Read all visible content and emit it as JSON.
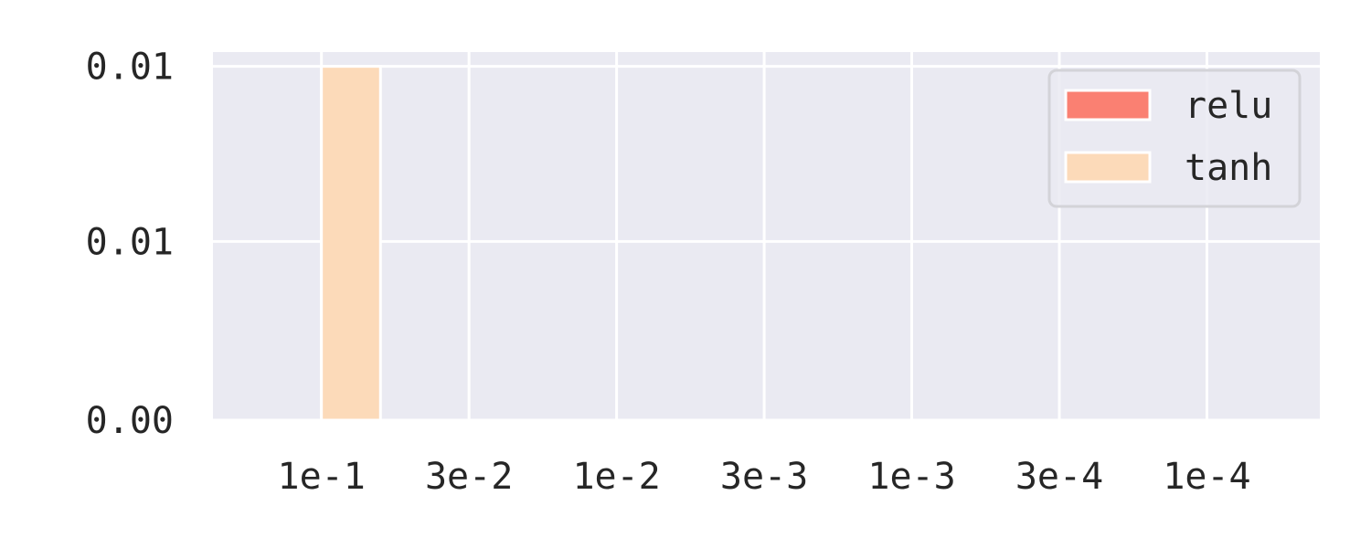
{
  "chart_data": {
    "type": "bar",
    "categories": [
      "1e-1",
      "3e-2",
      "1e-2",
      "3e-3",
      "1e-3",
      "3e-4",
      "1e-4"
    ],
    "series": [
      {
        "name": "relu",
        "color": "#fa8072",
        "values": [
          0,
          0,
          0,
          0,
          0,
          0,
          0
        ]
      },
      {
        "name": "tanh",
        "color": "#fcdab9",
        "values": [
          0.0099,
          0,
          0,
          0,
          0,
          0,
          0
        ]
      }
    ],
    "yticks": [
      {
        "value": 0.0,
        "label": "0.00"
      },
      {
        "value": 0.005,
        "label": "0.01"
      },
      {
        "value": 0.0099,
        "label": "0.01"
      }
    ],
    "ylim": [
      0,
      0.0103
    ],
    "title": "",
    "xlabel": "",
    "ylabel": "",
    "grid": true,
    "legend_position": "top-right",
    "plot_background": "#eaeaf2",
    "grid_color": "#ffffff"
  }
}
